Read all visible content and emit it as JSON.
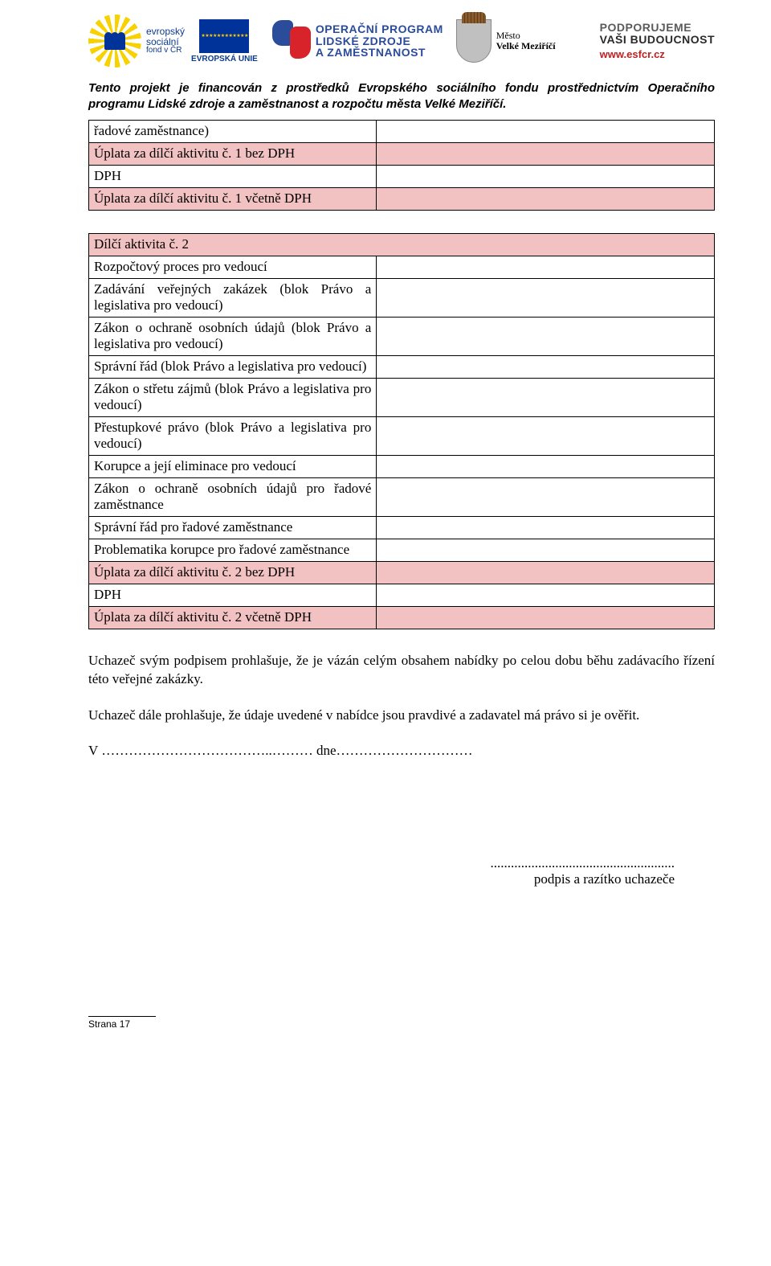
{
  "header": {
    "esf": {
      "l1": "evropský",
      "l2": "sociální",
      "l3": "fond v ČR"
    },
    "eu_label": "EVROPSKÁ UNIE",
    "oplzz": {
      "l1": "OPERAČNÍ PROGRAM",
      "l2": "LIDSKÉ ZDROJE",
      "l3": "A ZAMĚSTNANOST"
    },
    "city": {
      "l1": "Město",
      "l2": "Velké Meziříčí"
    },
    "support": {
      "l1": "PODPORUJEME",
      "l2": "VAŠI BUDOUCNOST",
      "l3": "www.esfcr.cz"
    }
  },
  "funding_note": "Tento projekt je financován z prostředků Evropského sociálního fondu prostřednictvím Operačního programu Lidské zdroje a zaměstnanost a rozpočtu města Velké Meziříčí.",
  "colors": {
    "pink_bg": "#f2c1c1",
    "border": "#000000",
    "text": "#000000"
  },
  "table1": {
    "rows": [
      {
        "label": "řadové zaměstnance)",
        "pink": false
      },
      {
        "label": "Úplata za dílčí aktivitu č. 1 bez DPH",
        "pink": true
      },
      {
        "label": "DPH",
        "pink": false
      },
      {
        "label": "Úplata za dílčí aktivitu č. 1 včetně DPH",
        "pink": true
      }
    ]
  },
  "table2": {
    "header": "Dílčí aktivita č. 2",
    "rows": [
      {
        "label": "Rozpočtový proces pro vedoucí",
        "pink": false
      },
      {
        "label": "Zadávání veřejných zakázek (blok Právo a legislativa pro vedoucí)",
        "pink": false
      },
      {
        "label": "Zákon o ochraně osobních údajů (blok Právo a legislativa pro vedoucí)",
        "pink": false
      },
      {
        "label": "Správní řád (blok Právo a legislativa pro vedoucí)",
        "pink": false
      },
      {
        "label": "Zákon o střetu zájmů (blok Právo a legislativa pro vedoucí)",
        "pink": false
      },
      {
        "label": "Přestupkové právo (blok Právo a legislativa pro vedoucí)",
        "pink": false
      },
      {
        "label": "Korupce a její eliminace pro vedoucí",
        "pink": false
      },
      {
        "label": "Zákon o ochraně osobních údajů pro řadové zaměstnance",
        "pink": false
      },
      {
        "label": "Správní řád pro řadové zaměstnance",
        "pink": false
      },
      {
        "label": "Problematika korupce pro řadové zaměstnance",
        "pink": false
      },
      {
        "label": "Úplata za dílčí aktivitu č. 2 bez DPH",
        "pink": true
      },
      {
        "label": "DPH",
        "pink": false
      },
      {
        "label": "Úplata za dílčí aktivitu č. 2 včetně DPH",
        "pink": true
      }
    ]
  },
  "declaration1": "Uchazeč svým podpisem prohlašuje, že je vázán celým obsahem nabídky po celou dobu běhu zadávacího řízení této veřejné zakázky.",
  "declaration2": "Uchazeč dále prohlašuje, že údaje uvedené v nabídce jsou pravdivé a zadavatel má právo si je ověřit.",
  "place_date": "V ………………………………..……… dne…………………………",
  "signature_dots": "......................................................",
  "signature_label": "podpis a  razítko uchazeče",
  "footer": "Strana 17"
}
